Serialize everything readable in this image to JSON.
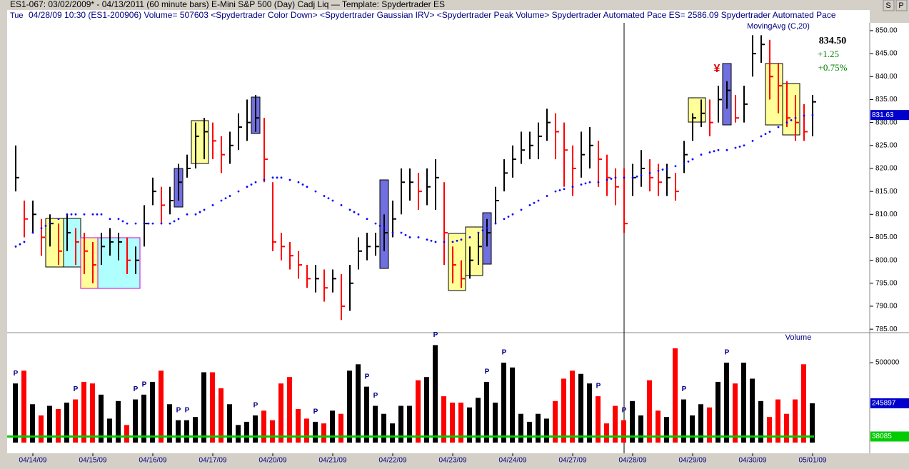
{
  "header": {
    "line1": "ES1-067:  03/02/2009* - 04/13/2011  (60 minute bars)   E-Mini S&P 500 (Day) Cadj Liq  —  Template: Spydertrader ES",
    "day": "Tue",
    "line2": "04/28/09 10:30 (ES1-200906)  Volume= 507603  <Spydertrader Color Down>  <Spydertrader Gaussian IRV>  <Spydertrader Peak Volume>  Spydertrader Automated Pace ES= 2586.09  Spydertrader Automated Pace",
    "buttons": [
      "S",
      "P"
    ]
  },
  "chart_data": {
    "type": "ohlc",
    "categories": [
      null,
      null,
      "04/14/09",
      null,
      null,
      null,
      null,
      null,
      null,
      "04/15/09",
      null,
      null,
      null,
      null,
      null,
      null,
      "04/16/09",
      null,
      null,
      null,
      null,
      null,
      null,
      "04/17/09",
      null,
      null,
      null,
      null,
      null,
      null,
      "04/20/09",
      null,
      null,
      null,
      null,
      null,
      null,
      "04/21/09",
      null,
      null,
      null,
      null,
      null,
      null,
      "04/22/09",
      null,
      null,
      null,
      null,
      null,
      null,
      "04/23/09",
      null,
      null,
      null,
      null,
      null,
      null,
      "04/24/09",
      null,
      null,
      null,
      null,
      null,
      null,
      "04/27/09",
      null,
      null,
      null,
      null,
      null,
      null,
      "04/28/09",
      null,
      null,
      null,
      null,
      null,
      null,
      "04/29/09",
      null,
      null,
      null,
      null,
      null,
      null,
      "04/30/09",
      null,
      null,
      null,
      null,
      null,
      null,
      "05/01/09"
    ],
    "high": [
      825,
      813,
      813,
      809,
      810,
      808,
      810,
      807,
      806,
      804,
      806,
      807,
      806,
      805,
      803,
      812,
      818,
      816,
      816,
      821,
      823,
      830,
      831,
      830,
      827,
      828,
      832,
      835,
      836,
      831,
      817,
      806,
      804,
      802,
      799,
      799,
      798,
      798,
      797,
      799,
      805,
      806,
      806,
      810,
      813,
      820,
      820,
      819,
      820,
      822,
      817,
      803,
      800,
      803,
      806,
      809,
      816,
      822,
      825,
      828,
      828,
      830,
      833,
      832,
      830,
      825,
      828,
      829,
      826,
      823,
      820,
      820,
      821,
      824,
      822,
      821,
      821,
      819,
      826,
      832,
      835,
      835,
      838,
      839,
      836,
      838,
      849,
      849,
      848,
      843,
      839,
      836,
      834,
      836
    ],
    "low": [
      815,
      805,
      806,
      801,
      803,
      799,
      802,
      799,
      797,
      795,
      799,
      801,
      800,
      797,
      797,
      803,
      812,
      808,
      810,
      813,
      818,
      820,
      822,
      822,
      819,
      821,
      824,
      826,
      828,
      817,
      802,
      800,
      798,
      796,
      794,
      793,
      791,
      793,
      787,
      789,
      798,
      800,
      801,
      802,
      805,
      810,
      813,
      811,
      812,
      811,
      799,
      795,
      794,
      796,
      799,
      803,
      808,
      815,
      818,
      821,
      822,
      822,
      826,
      822,
      816,
      814,
      818,
      820,
      816,
      814,
      812,
      806,
      814,
      816,
      815,
      814,
      814,
      813,
      819,
      826,
      829,
      827,
      830,
      833,
      830,
      830,
      840,
      843,
      835,
      832,
      829,
      826,
      826,
      827
    ],
    "close": [
      818,
      809,
      810,
      805,
      808,
      802,
      806,
      804,
      802,
      799,
      803,
      804,
      804,
      800,
      800,
      808,
      815,
      812,
      813,
      817,
      820,
      827,
      828,
      826,
      823,
      825,
      829,
      830,
      831,
      822,
      804,
      803,
      801,
      799,
      796,
      796,
      794,
      796,
      790,
      795,
      802,
      803,
      803,
      806,
      809,
      817,
      817,
      815,
      816,
      818,
      806,
      799,
      796,
      800,
      803,
      806,
      813,
      819,
      822,
      824,
      825,
      827,
      830,
      828,
      824,
      820,
      823,
      825,
      822,
      818,
      816,
      808,
      818,
      820,
      818,
      817,
      818,
      815,
      823,
      831,
      832,
      830,
      835,
      837,
      831,
      834,
      845,
      847,
      840,
      838,
      831,
      830,
      828,
      834.5
    ],
    "colors": [
      "black",
      "red",
      "black",
      "red",
      "black",
      "red",
      "black",
      "red",
      "red",
      "red",
      "black",
      "black",
      "black",
      "red",
      "black",
      "black",
      "black",
      "red",
      "black",
      "black",
      "black",
      "black",
      "black",
      "red",
      "red",
      "black",
      "black",
      "black",
      "black",
      "red",
      "red",
      "red",
      "red",
      "red",
      "red",
      "black",
      "red",
      "black",
      "red",
      "black",
      "black",
      "black",
      "black",
      "black",
      "black",
      "black",
      "black",
      "red",
      "black",
      "black",
      "red",
      "red",
      "red",
      "black",
      "black",
      "black",
      "black",
      "black",
      "black",
      "black",
      "black",
      "black",
      "black",
      "red",
      "red",
      "red",
      "black",
      "black",
      "red",
      "red",
      "red",
      "red",
      "black",
      "black",
      "red",
      "red",
      "black",
      "red",
      "black",
      "black",
      "black",
      "red",
      "black",
      "black",
      "red",
      "black",
      "black",
      "black",
      "red",
      "red",
      "red",
      "red",
      "red",
      "black"
    ],
    "ma": {
      "name": "MovingAvg (C,20)",
      "color": "#0000ff",
      "values": [
        803,
        804,
        806,
        807,
        808,
        809,
        810,
        810,
        810,
        810,
        810,
        809,
        809,
        808,
        808,
        808,
        808,
        808,
        808,
        809,
        810,
        810,
        811,
        812,
        813,
        814,
        815,
        816,
        817,
        817.5,
        818,
        818,
        817.5,
        817,
        816,
        815,
        814,
        813,
        812,
        811,
        810,
        809,
        808,
        807,
        806,
        806,
        805,
        805,
        804.5,
        804,
        804,
        804,
        804.5,
        805,
        806,
        807,
        808,
        809,
        810,
        811,
        812,
        813,
        814,
        815,
        815.5,
        816,
        816.5,
        817,
        817,
        817.5,
        818,
        818,
        818,
        818.5,
        819,
        819.5,
        820,
        820.5,
        821,
        822,
        823,
        823.5,
        824,
        824,
        824.5,
        825,
        826,
        827,
        828,
        829,
        830,
        831,
        831.5,
        831.63
      ]
    },
    "ylim": [
      784.4,
      851.7
    ],
    "yticks": [
      785,
      790,
      795,
      800,
      805,
      810,
      815,
      820,
      825,
      830,
      835,
      840,
      845,
      850
    ],
    "yticks_labels": [
      "785.00",
      "790.00",
      "795.00",
      "800.00",
      "805.00",
      "810.00",
      "815.00",
      "820.00",
      "825.00",
      "830.00",
      "835.00",
      "840.00",
      "845.00",
      "850.00"
    ],
    "last_close_label": "834.50",
    "change": "+1.25",
    "change_pct": "+0.75%",
    "marker_text": "¥",
    "volume": {
      "name": "Volume",
      "values": [
        370000,
        450000,
        240000,
        170000,
        230000,
        210000,
        250000,
        270000,
        380000,
        370000,
        300000,
        150000,
        260000,
        110000,
        270000,
        300000,
        380000,
        450000,
        240000,
        140000,
        140000,
        160000,
        440000,
        440000,
        340000,
        240000,
        110000,
        130000,
        170000,
        200000,
        140000,
        370000,
        410000,
        210000,
        150000,
        130000,
        120000,
        200000,
        180000,
        450000,
        490000,
        350000,
        230000,
        180000,
        120000,
        230000,
        230000,
        390000,
        410000,
        610000,
        290000,
        250000,
        250000,
        220000,
        280000,
        380000,
        250000,
        500000,
        470000,
        180000,
        130000,
        180000,
        150000,
        260000,
        400000,
        450000,
        430000,
        370000,
        290000,
        120000,
        230000,
        140000,
        260000,
        170000,
        390000,
        200000,
        160000,
        590000,
        270000,
        170000,
        240000,
        220000,
        380000,
        500000,
        370000,
        500000,
        400000,
        260000,
        160000,
        270000,
        180000,
        270000,
        490000,
        245897
      ],
      "flags": [
        "P",
        null,
        null,
        null,
        null,
        null,
        null,
        "P",
        null,
        null,
        null,
        null,
        null,
        null,
        "P",
        "P",
        null,
        null,
        null,
        "P",
        "P",
        null,
        null,
        null,
        null,
        null,
        null,
        null,
        "P",
        null,
        null,
        null,
        null,
        null,
        null,
        "P",
        null,
        null,
        null,
        null,
        null,
        "P",
        "P",
        null,
        null,
        null,
        null,
        null,
        null,
        "P",
        null,
        null,
        null,
        null,
        null,
        "P",
        null,
        "P",
        null,
        null,
        null,
        null,
        null,
        null,
        null,
        null,
        null,
        null,
        "P",
        null,
        null,
        "P",
        null,
        null,
        null,
        null,
        null,
        null,
        "P",
        null,
        null,
        null,
        null,
        "P",
        null,
        null,
        null,
        null,
        null,
        null,
        null,
        null,
        null,
        null
      ],
      "ylim": [
        0,
        670000
      ],
      "yticks": [
        500000
      ],
      "floor": 38085
    }
  }
}
